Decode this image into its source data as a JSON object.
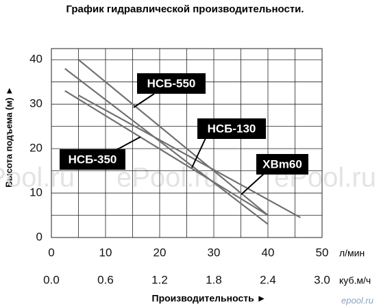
{
  "chart_data": {
    "type": "line",
    "title": "График гидравлической производительности.",
    "ylabel": "Высота подъема (м) ►",
    "xlabel": "Производительность ►",
    "xunit": "л/мин",
    "x2unit": "куб.м/ч",
    "xlim": [
      0,
      50
    ],
    "xticks": [
      0,
      10,
      20,
      30,
      40,
      50
    ],
    "x2lim": [
      0,
      3.0
    ],
    "x2ticks": [
      {
        "value": 0,
        "label": "0.0"
      },
      0.6,
      1.2,
      1.8,
      2.4,
      {
        "value": 3.0,
        "label": "3.0"
      }
    ],
    "ylim": [
      0,
      42.5
    ],
    "yticks": [
      0,
      10,
      20,
      30,
      40
    ],
    "xgrid": [
      5,
      10,
      15,
      20,
      25,
      30,
      35,
      40,
      45
    ],
    "ygrid": [
      5,
      10,
      15,
      20,
      25,
      30,
      35,
      40
    ],
    "grid": true,
    "series": [
      {
        "name": "НСБ-550",
        "color": "#707070",
        "x": [
          5,
          40
        ],
        "values": [
          40,
          5
        ]
      },
      {
        "name": "НСБ-130",
        "color": "#707070",
        "x": [
          2.5,
          40
        ],
        "values": [
          38,
          3
        ]
      },
      {
        "name": "НСБ-350",
        "color": "#707070",
        "x": [
          2.5,
          40
        ],
        "values": [
          33,
          5
        ]
      },
      {
        "name": "XBm60",
        "color": "#707070",
        "x": [
          5,
          46
        ],
        "values": [
          32,
          4.5
        ]
      }
    ],
    "watermark": "ePool.ru",
    "logo": "epool.ru"
  }
}
